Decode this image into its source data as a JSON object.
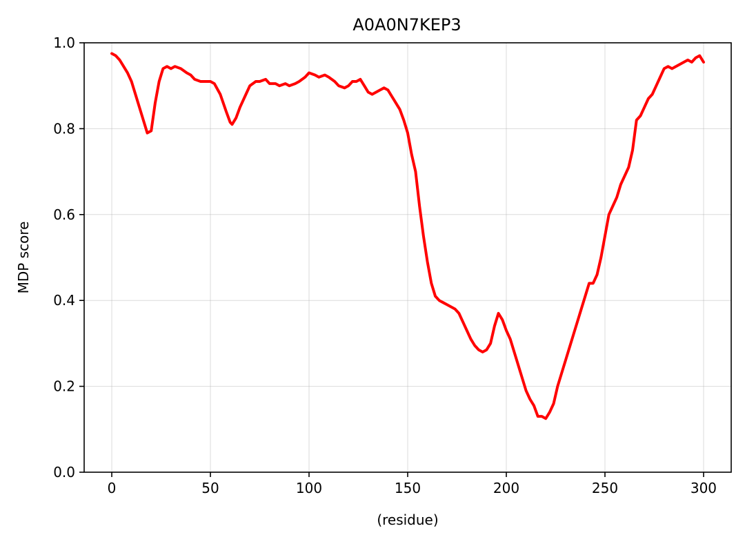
{
  "chart_data": {
    "type": "line",
    "title": "A0A0N7KEP3",
    "xlabel": "(residue)",
    "ylabel": "MDP score",
    "xlim": [
      -14,
      314
    ],
    "ylim": [
      0.0,
      1.0
    ],
    "xticks": [
      0,
      50,
      100,
      150,
      200,
      250,
      300
    ],
    "yticks": [
      0.0,
      0.2,
      0.4,
      0.6,
      0.8,
      1.0
    ],
    "xtick_labels": [
      "0",
      "50",
      "100",
      "150",
      "200",
      "250",
      "300"
    ],
    "ytick_labels": [
      "0.0",
      "0.2",
      "0.4",
      "0.6",
      "0.8",
      "1.0"
    ],
    "grid": true,
    "series": [
      {
        "color": "#ff0000",
        "x": [
          0,
          2,
          4,
          6,
          8,
          10,
          12,
          14,
          16,
          18,
          20,
          22,
          24,
          26,
          28,
          30,
          32,
          35,
          38,
          40,
          42,
          45,
          48,
          50,
          52,
          55,
          58,
          60,
          61,
          63,
          65,
          68,
          70,
          73,
          75,
          78,
          80,
          83,
          85,
          88,
          90,
          93,
          95,
          98,
          100,
          103,
          105,
          108,
          110,
          113,
          115,
          118,
          120,
          122,
          124,
          126,
          128,
          130,
          132,
          134,
          136,
          138,
          140,
          142,
          144,
          146,
          148,
          150,
          152,
          154,
          156,
          158,
          160,
          162,
          164,
          166,
          168,
          170,
          172,
          174,
          176,
          178,
          180,
          182,
          184,
          186,
          188,
          190,
          192,
          194,
          196,
          198,
          200,
          202,
          204,
          206,
          208,
          210,
          212,
          214,
          216,
          218,
          220,
          222,
          224,
          226,
          228,
          230,
          232,
          234,
          236,
          238,
          240,
          242,
          244,
          246,
          248,
          250,
          252,
          254,
          256,
          258,
          260,
          262,
          264,
          266,
          268,
          270,
          272,
          274,
          276,
          278,
          280,
          282,
          284,
          286,
          288,
          290,
          292,
          294,
          296,
          298,
          300
        ],
        "y": [
          0.975,
          0.97,
          0.96,
          0.945,
          0.93,
          0.91,
          0.88,
          0.85,
          0.82,
          0.79,
          0.795,
          0.86,
          0.91,
          0.94,
          0.945,
          0.94,
          0.945,
          0.94,
          0.93,
          0.925,
          0.915,
          0.91,
          0.91,
          0.91,
          0.905,
          0.88,
          0.84,
          0.815,
          0.81,
          0.825,
          0.85,
          0.88,
          0.9,
          0.91,
          0.91,
          0.915,
          0.905,
          0.905,
          0.9,
          0.905,
          0.9,
          0.905,
          0.91,
          0.92,
          0.93,
          0.925,
          0.92,
          0.925,
          0.92,
          0.91,
          0.9,
          0.895,
          0.9,
          0.91,
          0.91,
          0.915,
          0.9,
          0.885,
          0.88,
          0.885,
          0.89,
          0.895,
          0.89,
          0.875,
          0.86,
          0.845,
          0.82,
          0.79,
          0.74,
          0.7,
          0.62,
          0.55,
          0.49,
          0.44,
          0.41,
          0.4,
          0.395,
          0.39,
          0.385,
          0.38,
          0.37,
          0.35,
          0.33,
          0.31,
          0.295,
          0.285,
          0.28,
          0.285,
          0.3,
          0.34,
          0.37,
          0.355,
          0.33,
          0.31,
          0.28,
          0.25,
          0.22,
          0.19,
          0.17,
          0.155,
          0.13,
          0.13,
          0.125,
          0.14,
          0.16,
          0.2,
          0.23,
          0.26,
          0.29,
          0.32,
          0.35,
          0.38,
          0.41,
          0.44,
          0.44,
          0.46,
          0.5,
          0.55,
          0.6,
          0.62,
          0.64,
          0.67,
          0.69,
          0.71,
          0.75,
          0.82,
          0.83,
          0.85,
          0.87,
          0.88,
          0.9,
          0.92,
          0.94,
          0.945,
          0.94,
          0.945,
          0.95,
          0.955,
          0.96,
          0.955,
          0.965,
          0.97,
          0.955
        ]
      }
    ]
  }
}
